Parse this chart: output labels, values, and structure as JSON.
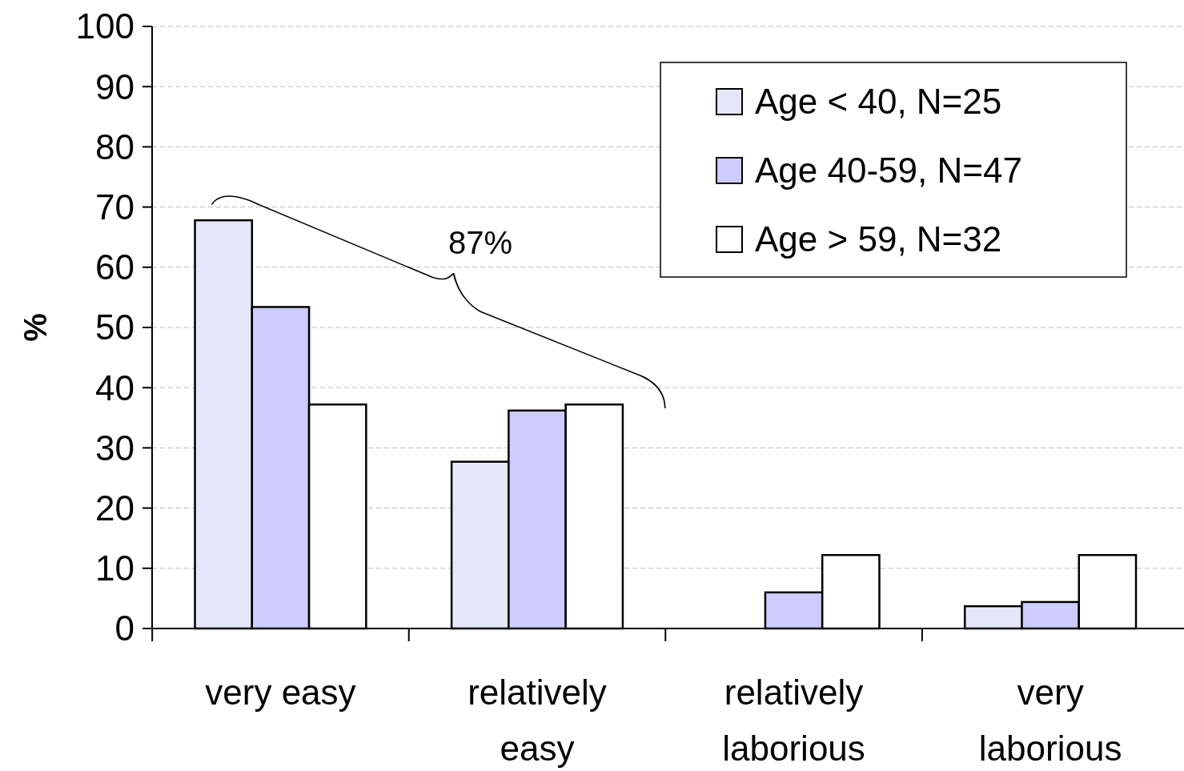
{
  "chart_data": {
    "type": "bar",
    "categories": [
      "very easy",
      "relatively easy",
      "relatively laborious",
      "very laborious"
    ],
    "series": [
      {
        "name": "Age < 40, N=25",
        "color": "#e6e6fa",
        "values": [
          67.8,
          27.7,
          0,
          3.7
        ]
      },
      {
        "name": "Age 40-59, N=47",
        "color": "#ccccff",
        "values": [
          53.4,
          36.2,
          6.0,
          4.4
        ]
      },
      {
        "name": "Age > 59, N=32",
        "color": "#ffffff",
        "values": [
          37.2,
          37.2,
          12.2,
          12.2
        ]
      }
    ],
    "ylabel": "%",
    "ylim": [
      0,
      100
    ],
    "yticks": [
      0,
      10,
      20,
      30,
      40,
      50,
      60,
      70,
      80,
      90,
      100
    ],
    "grid": "y",
    "legend": "top right",
    "annotations": [
      "87%"
    ]
  }
}
